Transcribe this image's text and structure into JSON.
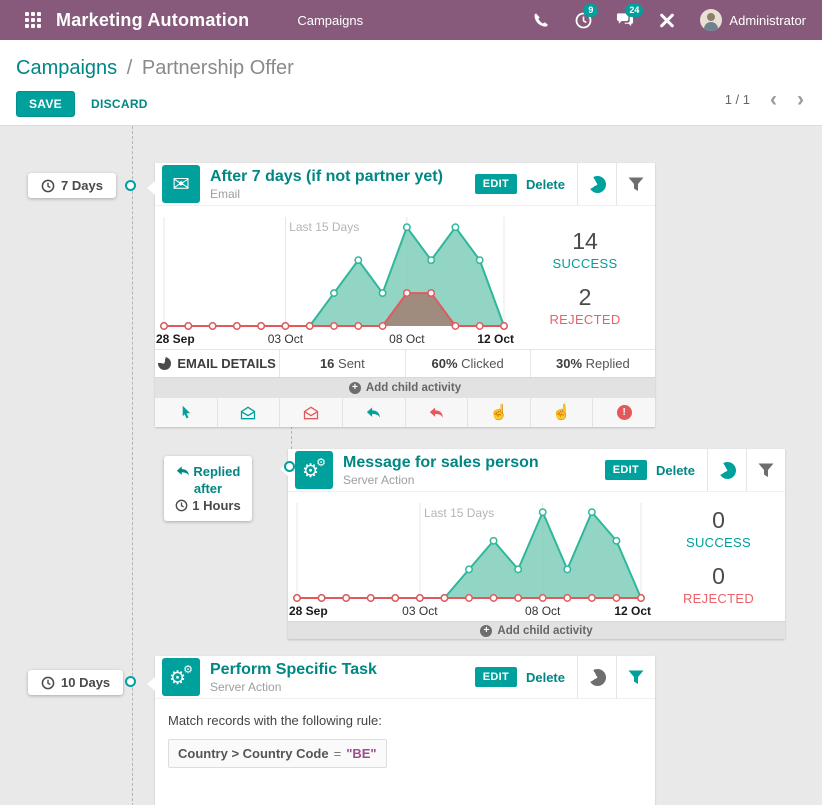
{
  "colors": {
    "header_bg": "#875A7B",
    "accent": "#00A09D",
    "link_teal": "#008784",
    "success": "#00A09D",
    "rejected": "#EA6168",
    "chart_success_line": "#2FB79B",
    "chart_rejected_line": "#E2595C",
    "value_purple": "#9B4D8F"
  },
  "header": {
    "app_title": "Marketing Automation",
    "menu": "Campaigns",
    "activity_badge": "9",
    "message_badge": "24",
    "user": "Administrator",
    "icons": [
      "apps-grid-icon",
      "phone-icon",
      "activity-clock-icon",
      "messages-icon",
      "tools-icon",
      "avatar"
    ]
  },
  "breadcrumb": {
    "parent": "Campaigns",
    "separator": "/",
    "current": "Partnership Offer"
  },
  "actions": {
    "save": "SAVE",
    "discard": "DISCARD"
  },
  "pager": {
    "value": "1 / 1",
    "prev": "‹",
    "next": "›"
  },
  "connectors": [
    {
      "label": "7 Days",
      "icon": "clock-icon"
    },
    {
      "lines": [
        "Replied",
        "after",
        "1 Hours"
      ],
      "icons": [
        "reply-icon",
        "clock-icon"
      ]
    },
    {
      "label": "10 Days",
      "icon": "clock-icon"
    }
  ],
  "activities": [
    {
      "title": "After 7 days (if not partner yet)",
      "type": "Email",
      "icon": "envelope-icon",
      "edit": "EDIT",
      "delete": "Delete",
      "stats": {
        "success_value": "14",
        "success_label": "SUCCESS",
        "rejected_value": "2",
        "rejected_label": "REJECTED"
      },
      "details": [
        {
          "icon": "pie-icon",
          "label": "EMAIL DETAILS"
        },
        {
          "bold": "16",
          "label": "Sent"
        },
        {
          "bold": "60%",
          "label": "Clicked"
        },
        {
          "bold": "30%",
          "label": "Replied"
        }
      ],
      "add_child": "Add child activity",
      "triggers": [
        "cursor",
        "envelope-open-success",
        "envelope-open-rejected",
        "reply-success",
        "reply-rejected",
        "click-success",
        "click-rejected",
        "bounce"
      ]
    },
    {
      "title": "Message for sales person",
      "type": "Server Action",
      "icon": "gears-icon",
      "edit": "EDIT",
      "delete": "Delete",
      "stats": {
        "success_value": "0",
        "success_label": "SUCCESS",
        "rejected_value": "0",
        "rejected_label": "REJECTED"
      },
      "add_child": "Add child activity"
    },
    {
      "title": "Perform Specific Task",
      "type": "Server Action",
      "icon": "gears-icon",
      "edit": "EDIT",
      "delete": "Delete",
      "rule": {
        "intro": "Match records with the following rule:",
        "field": "Country > Country Code",
        "operator": "=",
        "value": "\"BE\""
      }
    }
  ],
  "chart_data": [
    {
      "type": "area",
      "title": "Last 15 Days",
      "x": [
        "28 Sep",
        "29 Sep",
        "30 Sep",
        "01 Oct",
        "02 Oct",
        "03 Oct",
        "04 Oct",
        "05 Oct",
        "06 Oct",
        "07 Oct",
        "08 Oct",
        "09 Oct",
        "10 Oct",
        "11 Oct",
        "12 Oct"
      ],
      "tick_indices": [
        0,
        5,
        10,
        14
      ],
      "tick_labels": [
        "28 Sep",
        "03 Oct",
        "08 Oct",
        "12 Oct"
      ],
      "ylim": [
        0,
        6.5
      ],
      "legend": "none",
      "grid": "vertical-ticks",
      "series": [
        {
          "name": "success",
          "color": "#2FB79B",
          "fill": "rgba(127,206,186,0.85)",
          "values": [
            0,
            0,
            0,
            0,
            0,
            0,
            0,
            2,
            4,
            2,
            6,
            4,
            6,
            4,
            0
          ]
        },
        {
          "name": "rejected",
          "color": "#E2595C",
          "fill": "rgba(170,80,70,0.55)",
          "values": [
            0,
            0,
            0,
            0,
            0,
            0,
            0,
            0,
            0,
            0,
            2,
            2,
            0,
            0,
            0
          ]
        }
      ]
    },
    {
      "type": "area",
      "title": "Last 15 Days",
      "x": [
        "28 Sep",
        "29 Sep",
        "30 Sep",
        "01 Oct",
        "02 Oct",
        "03 Oct",
        "04 Oct",
        "05 Oct",
        "06 Oct",
        "07 Oct",
        "08 Oct",
        "09 Oct",
        "10 Oct",
        "11 Oct",
        "12 Oct"
      ],
      "tick_indices": [
        0,
        5,
        10,
        14
      ],
      "tick_labels": [
        "28 Sep",
        "03 Oct",
        "08 Oct",
        "12 Oct"
      ],
      "ylim": [
        0,
        6.5
      ],
      "legend": "none",
      "grid": "vertical-ticks",
      "series": [
        {
          "name": "success",
          "color": "#2FB79B",
          "fill": "rgba(127,206,186,0.85)",
          "values": [
            0,
            0,
            0,
            0,
            0,
            0,
            0,
            2,
            4,
            2,
            6,
            2,
            6,
            4,
            0
          ]
        },
        {
          "name": "rejected",
          "color": "#E2595C",
          "fill": "rgba(170,80,70,0.55)",
          "values": [
            0,
            0,
            0,
            0,
            0,
            0,
            0,
            0,
            0,
            0,
            0,
            0,
            0,
            0,
            0
          ]
        }
      ]
    }
  ]
}
